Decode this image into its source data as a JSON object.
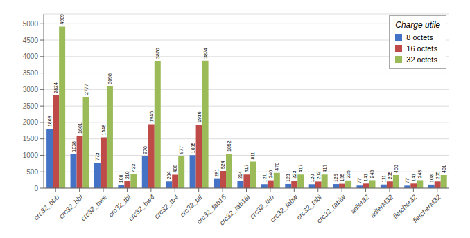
{
  "chart_data": {
    "type": "bar",
    "categories": [
      "crc32_bbb",
      "crc32_bbf",
      "crc32_bwe",
      "crc32_tbl",
      "crc32_bw4",
      "crc32_tb4",
      "crc32_bit",
      "crc32_tab16",
      "crc32_tab16i",
      "crc32_tab",
      "crc32_tabw",
      "crc32_tabi",
      "crc32_tabiw",
      "adler32",
      "adlerM32",
      "fletcher32",
      "fletcherM32"
    ],
    "series": [
      {
        "name": "8 octets",
        "color": "#4472C4",
        "values": [
          1808,
          1038,
          773,
          100,
          970,
          204,
          1005,
          281,
          214,
          121,
          128,
          120,
          125,
          77,
          111,
          77,
          108
        ]
      },
      {
        "name": "16 octets",
        "color": "#BE4B48",
        "values": [
          2824,
          1601,
          1548,
          210,
          1945,
          408,
          1936,
          524,
          417,
          240,
          223,
          202,
          135,
          141,
          205,
          141,
          205
        ]
      },
      {
        "name": "32 octets",
        "color": "#9BBB59",
        "values": [
          4909,
          2777,
          3098,
          433,
          3870,
          977,
          3874,
          1052,
          811,
          470,
          417,
          417,
          235,
          243,
          400,
          243,
          401
        ]
      }
    ],
    "legend_title": "Charge utile",
    "ylim": [
      0,
      5300
    ],
    "yticks": [
      0,
      500,
      1000,
      1500,
      2000,
      2500,
      3000,
      3500,
      4000,
      4500,
      5000
    ],
    "grid": true,
    "legend": "upper right",
    "data_labels": true
  }
}
